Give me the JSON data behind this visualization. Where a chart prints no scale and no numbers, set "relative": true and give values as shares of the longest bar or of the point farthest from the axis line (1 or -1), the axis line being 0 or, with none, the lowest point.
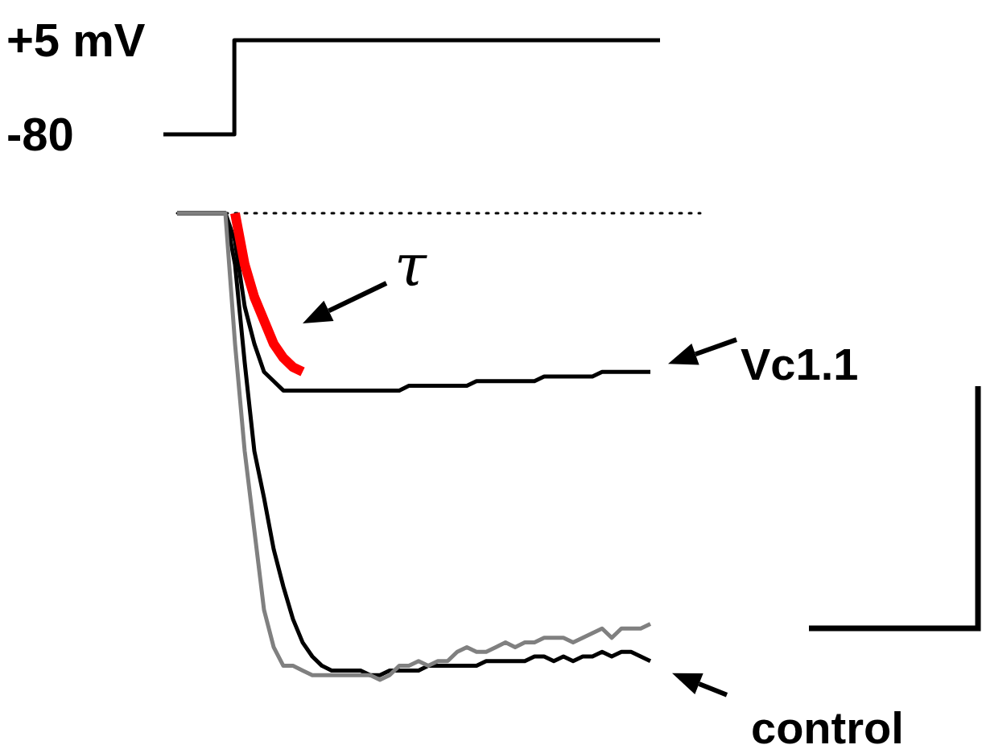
{
  "chart_data": [
    {
      "type": "step",
      "categories": [
        null,
        null,
        null,
        null,
        null,
        null,
        null,
        null
      ],
      "ylim": [
        -80,
        5
      ],
      "yticks": [
        {
          "value": 5,
          "label": "+5 mV"
        },
        {
          "value": -80,
          "label": "-80"
        }
      ],
      "tick_labels": "y",
      "series": [
        {
          "color": "#000000",
          "values": [
            -80,
            5,
            5,
            5,
            5,
            5,
            5,
            5
          ]
        }
      ]
    },
    {
      "type": "line",
      "relative": true,
      "categories": [
        null,
        null,
        null,
        null,
        null,
        null,
        null,
        null,
        null,
        null,
        null,
        null,
        null,
        null,
        null,
        null,
        null,
        null,
        null,
        null,
        null,
        null,
        null,
        null,
        null,
        null,
        null,
        null,
        null,
        null,
        null,
        null,
        null,
        null,
        null,
        null,
        null,
        null,
        null,
        null,
        null,
        null,
        null,
        null,
        null,
        null,
        null,
        null,
        null,
        null
      ],
      "ref_lines": [
        {
          "axis": "y",
          "value": 0,
          "color": "#000000",
          "line_style": "dotted"
        }
      ],
      "annotations": [
        "τ"
      ],
      "legend": "right",
      "series": [
        {
          "name": "Vc1.1",
          "color": "#000000",
          "values": [
            0,
            0,
            0,
            0,
            0,
            0,
            -0.06,
            -0.2,
            -0.28,
            -0.34,
            -0.36,
            -0.38,
            -0.38,
            -0.38,
            -0.38,
            -0.38,
            -0.38,
            -0.38,
            -0.38,
            -0.38,
            -0.38,
            -0.38,
            -0.38,
            -0.38,
            -0.37,
            -0.37,
            -0.37,
            -0.37,
            -0.37,
            -0.37,
            -0.37,
            -0.36,
            -0.36,
            -0.36,
            -0.36,
            -0.36,
            -0.36,
            -0.36,
            -0.35,
            -0.35,
            -0.35,
            -0.35,
            -0.35,
            -0.35,
            -0.34,
            -0.34,
            -0.34,
            -0.34,
            -0.34,
            -0.34
          ]
        },
        {
          "name": "control",
          "color": "#000000",
          "values": [
            0,
            0,
            0,
            0,
            0,
            0,
            -0.11,
            -0.32,
            -0.51,
            -0.61,
            -0.72,
            -0.8,
            -0.87,
            -0.92,
            -0.95,
            -0.97,
            -0.98,
            -0.98,
            -0.98,
            -0.98,
            -0.99,
            -0.99,
            -0.98,
            -0.98,
            -0.98,
            -0.98,
            -0.97,
            -0.97,
            -0.97,
            -0.97,
            -0.97,
            -0.97,
            -0.96,
            -0.96,
            -0.96,
            -0.96,
            -0.96,
            -0.95,
            -0.95,
            -0.96,
            -0.95,
            -0.96,
            -0.95,
            -0.95,
            -0.94,
            -0.95,
            -0.94,
            -0.94,
            -0.95,
            -0.96
          ]
        },
        {
          "color": "#808080",
          "values": [
            0,
            0,
            0,
            0,
            0,
            0,
            -0.28,
            -0.51,
            -0.68,
            -0.85,
            -0.93,
            -0.97,
            -0.97,
            -0.98,
            -0.99,
            -0.99,
            -0.99,
            -0.99,
            -0.99,
            -0.99,
            -0.99,
            -1,
            -0.99,
            -0.97,
            -0.97,
            -0.96,
            -0.97,
            -0.96,
            -0.96,
            -0.94,
            -0.93,
            -0.94,
            -0.94,
            -0.93,
            -0.92,
            -0.93,
            -0.92,
            -0.92,
            -0.91,
            -0.91,
            -0.91,
            -0.92,
            -0.91,
            -0.9,
            -0.89,
            -0.91,
            -0.89,
            -0.89,
            -0.89,
            -0.88
          ]
        },
        {
          "color": "#ff0000",
          "values": [
            null,
            null,
            null,
            null,
            null,
            null,
            0,
            -0.11,
            -0.18,
            -0.23,
            -0.28,
            -0.31,
            -0.33,
            -0.34,
            null,
            null,
            null,
            null,
            null,
            null,
            null,
            null,
            null,
            null,
            null,
            null,
            null,
            null,
            null,
            null,
            null,
            null,
            null,
            null,
            null,
            null,
            null,
            null,
            null,
            null,
            null,
            null,
            null,
            null,
            null,
            null,
            null,
            null,
            null,
            null
          ]
        }
      ]
    }
  ]
}
